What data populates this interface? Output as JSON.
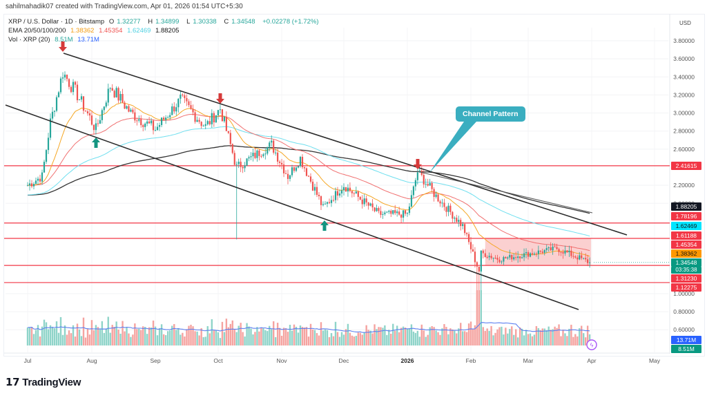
{
  "credit": "sahilmahadik07 created with TradingView.com, Apr 01, 2026 01:54 UTC+5:30",
  "legend": {
    "symbol": "XRP / U.S. Dollar · 1D · Bitstamp",
    "open_label": "O",
    "open": "1.32277",
    "high_label": "H",
    "high": "1.34899",
    "low_label": "L",
    "low": "1.30338",
    "close_label": "C",
    "close": "1.34548",
    "change": "+0.02278 (+1.72%)",
    "ema_label": "EMA 20/50/100/200",
    "ema20": "1.38362",
    "ema50": "1.45354",
    "ema100": "1.62469",
    "ema200": "1.88205",
    "vol_label": "Vol · XRP (20)",
    "vol": "8.51M",
    "vol_ma": "13.71M"
  },
  "axis": {
    "currency": "USD",
    "ticks": [
      "3.80000",
      "3.60000",
      "3.40000",
      "3.20000",
      "3.00000",
      "2.80000",
      "2.60000",
      "2.20000",
      "2.00000",
      "1.00000",
      "0.80000",
      "0.60000"
    ],
    "months": [
      "Jul",
      "Aug",
      "Sep",
      "Oct",
      "Nov",
      "Dec",
      "2026",
      "Feb",
      "Mar",
      "Apr",
      "May"
    ]
  },
  "price_tags": [
    {
      "value": "2.41615",
      "color": "#f23645"
    },
    {
      "value": "1.88205",
      "color": "#131722"
    },
    {
      "value": "1.78196",
      "color": "#f23645"
    },
    {
      "value": "1.62469",
      "color": "#00e5ff",
      "text": "#111"
    },
    {
      "value": "1.61188",
      "color": "#f23645"
    },
    {
      "value": "1.45354",
      "color": "#f23645"
    },
    {
      "value": "1.38362",
      "color": "#ff9800",
      "text": "#111"
    },
    {
      "value": "1.34548",
      "color": "#089981",
      "sub": "03:35:38"
    },
    {
      "value": "1.31230",
      "color": "#f23645"
    },
    {
      "value": "1.12275",
      "color": "#f23645"
    },
    {
      "value": "13.71M",
      "color": "#2962ff",
      "pane": "vol"
    },
    {
      "value": "8.51M",
      "color": "#089981",
      "pane": "vol"
    }
  ],
  "annotation": {
    "label": "Channel Pattern"
  },
  "brand": {
    "name": "TradingView"
  },
  "colors": {
    "up": "#26a69a",
    "down": "#ef5350",
    "level": "#f23645",
    "zone": "#f7a9a9"
  },
  "chart_data": {
    "type": "candlestick",
    "title": "XRP / U.S. Dollar · 1D · Bitstamp",
    "ylabel": "USD",
    "ylim": [
      0.5,
      3.9
    ],
    "x_categories": [
      "Jul",
      "Aug",
      "Sep",
      "Oct",
      "Nov",
      "Dec",
      "2026",
      "Feb",
      "Mar",
      "Apr",
      "May"
    ],
    "horizontal_levels": [
      2.41615,
      1.78196,
      1.61188,
      1.3123,
      1.12275
    ],
    "consolidation_zone": {
      "from": "Feb",
      "to": "Apr",
      "top": 1.61188,
      "bottom": 1.3123
    },
    "channel": {
      "upper": [
        {
          "date": "Jul-18",
          "price": 3.66
        },
        {
          "date": "Apr-20",
          "price": 1.65
        }
      ],
      "lower": [
        {
          "date": "Jun-25",
          "price": 3.08
        },
        {
          "date": "Mar-25",
          "price": 0.8
        }
      ]
    },
    "markers": [
      {
        "type": "down-arrow",
        "date": "Jul-18",
        "price": 3.66
      },
      {
        "type": "down-arrow",
        "date": "Oct-02",
        "price": 3.1
      },
      {
        "type": "down-arrow",
        "date": "Jan-06",
        "price": 2.41
      },
      {
        "type": "up-arrow",
        "date": "Aug-03",
        "price": 2.7
      },
      {
        "type": "up-arrow",
        "date": "Nov-21",
        "price": 1.78
      }
    ],
    "close_path": [
      {
        "d": "Jul-01",
        "c": 2.2
      },
      {
        "d": "Jul-08",
        "c": 2.3
      },
      {
        "d": "Jul-12",
        "c": 2.9
      },
      {
        "d": "Jul-18",
        "c": 3.45
      },
      {
        "d": "Jul-25",
        "c": 3.2
      },
      {
        "d": "Aug-03",
        "c": 2.82
      },
      {
        "d": "Aug-10",
        "c": 3.3
      },
      {
        "d": "Aug-20",
        "c": 3.0
      },
      {
        "d": "Sep-01",
        "c": 2.82
      },
      {
        "d": "Sep-13",
        "c": 3.15
      },
      {
        "d": "Sep-25",
        "c": 2.85
      },
      {
        "d": "Oct-02",
        "c": 3.05
      },
      {
        "d": "Oct-10",
        "c": 2.4
      },
      {
        "d": "Oct-27",
        "c": 2.65
      },
      {
        "d": "Nov-04",
        "c": 2.3
      },
      {
        "d": "Nov-10",
        "c": 2.5
      },
      {
        "d": "Nov-21",
        "c": 1.95
      },
      {
        "d": "Dec-01",
        "c": 2.2
      },
      {
        "d": "Dec-18",
        "c": 1.88
      },
      {
        "d": "Jan-01",
        "c": 1.88
      },
      {
        "d": "Jan-06",
        "c": 2.35
      },
      {
        "d": "Jan-15",
        "c": 2.08
      },
      {
        "d": "Jan-28",
        "c": 1.75
      },
      {
        "d": "Feb-05",
        "c": 1.25
      },
      {
        "d": "Feb-06",
        "c": 1.45
      },
      {
        "d": "Feb-15",
        "c": 1.38
      },
      {
        "d": "Mar-15",
        "c": 1.5
      },
      {
        "d": "Mar-31",
        "c": 1.34548
      }
    ],
    "ema": {
      "ema20": 1.38362,
      "ema50": 1.45354,
      "ema100": 1.62469,
      "ema200": 1.88205
    },
    "volume": {
      "last": "8.51M",
      "ma20": "13.71M"
    }
  }
}
